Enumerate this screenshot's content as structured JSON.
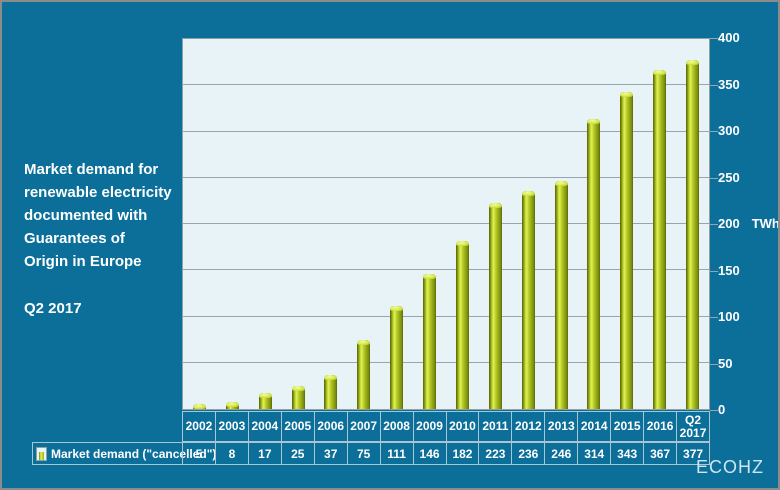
{
  "title": {
    "text": "Market demand for\nrenewable electricity\ndocumented with\nGuarantees of\nOrigin in Europe",
    "period": "Q2 2017"
  },
  "brand": "ECOHZ",
  "colors": {
    "background": "#0b6f9a",
    "plot_background": "#e7f3f7",
    "gridline": "#97a6ae",
    "bar_main": "#b5cb22",
    "bar_highlight": "#e0f055",
    "bar_shadow": "#5a6a06",
    "table_border": "#a9c6d3",
    "text": "#ffffff",
    "brand_text": "#cfe6f0"
  },
  "chart_data": {
    "type": "bar",
    "title": "Market demand for renewable electricity documented with Guarantees of Origin in Europe — Q2 2017",
    "categories": [
      "2002",
      "2003",
      "2004",
      "2005",
      "2006",
      "2007",
      "2008",
      "2009",
      "2010",
      "2011",
      "2012",
      "2013",
      "2014",
      "2015",
      "2016",
      "Q2 2017"
    ],
    "values": [
      5,
      8,
      17,
      25,
      37,
      75,
      111,
      146,
      182,
      223,
      236,
      246,
      314,
      343,
      367,
      377
    ],
    "series_name": "Market demand (\"cancelled\")",
    "xlabel": "",
    "ylabel": "TWh",
    "ylim": [
      0,
      400
    ],
    "ytick_step": 50,
    "yticks": [
      0,
      50,
      100,
      150,
      200,
      250,
      300,
      350,
      400
    ],
    "ylabel_anchor_tick": 200,
    "grid": true,
    "legend_position": "bottom-table",
    "bar_color": "#b5cb22"
  }
}
